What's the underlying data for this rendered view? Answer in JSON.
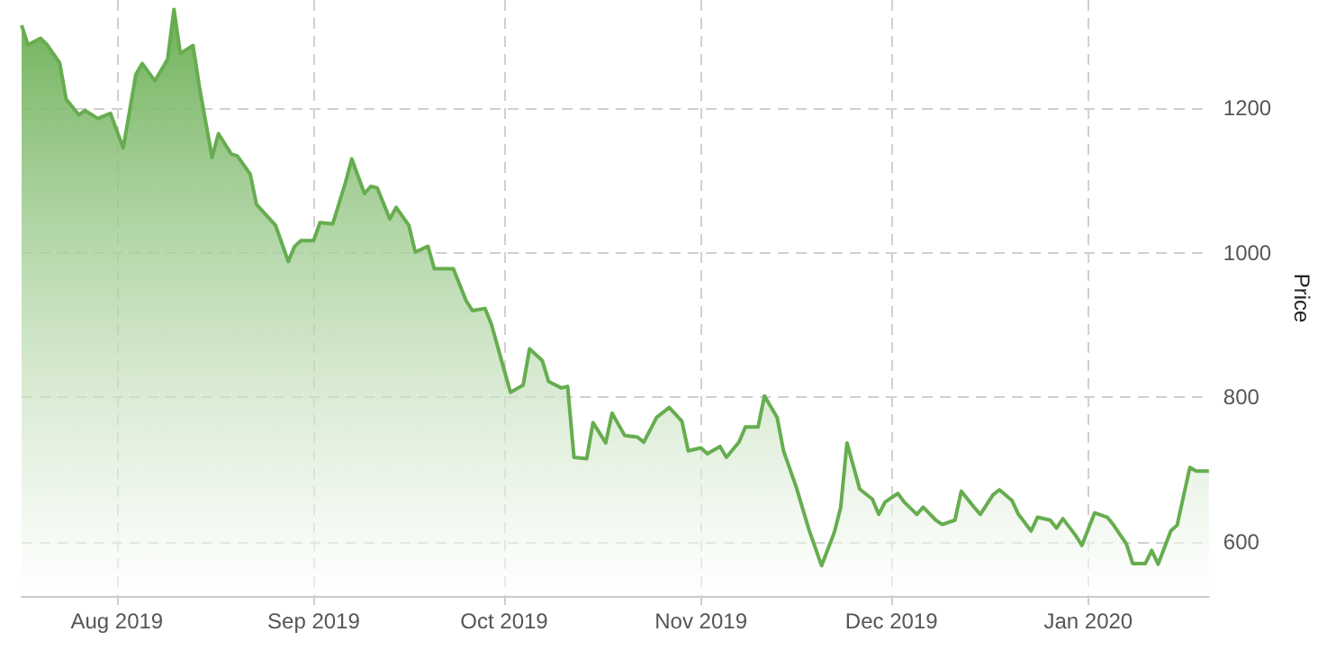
{
  "chart_data": {
    "type": "area",
    "ylabel": "Price",
    "grid": true,
    "marker": "none",
    "line_style": "solid",
    "xlim": [
      "2019-07-17",
      "2020-01-20"
    ],
    "xticks": [
      {
        "value": "2019-08-01",
        "label": "Aug 2019"
      },
      {
        "value": "2019-09-01",
        "label": "Sep 2019"
      },
      {
        "value": "2019-10-01",
        "label": "Oct 2019"
      },
      {
        "value": "2019-11-01",
        "label": "Nov 2019"
      },
      {
        "value": "2019-12-01",
        "label": "Dec 2019"
      },
      {
        "value": "2020-01-01",
        "label": "Jan 2020"
      }
    ],
    "ylim": [
      525,
      1350
    ],
    "yticks": [
      600,
      800,
      1000,
      1200
    ],
    "x": [
      "2019-07-17",
      "2019-07-18",
      "2019-07-20",
      "2019-07-21",
      "2019-07-23",
      "2019-07-24",
      "2019-07-26",
      "2019-07-27",
      "2019-07-29",
      "2019-07-31",
      "2019-08-02",
      "2019-08-04",
      "2019-08-05",
      "2019-08-07",
      "2019-08-09",
      "2019-08-10",
      "2019-08-11",
      "2019-08-13",
      "2019-08-14",
      "2019-08-16",
      "2019-08-17",
      "2019-08-19",
      "2019-08-20",
      "2019-08-22",
      "2019-08-23",
      "2019-08-26",
      "2019-08-28",
      "2019-08-29",
      "2019-08-30",
      "2019-09-01",
      "2019-09-02",
      "2019-09-04",
      "2019-09-06",
      "2019-09-07",
      "2019-09-09",
      "2019-09-10",
      "2019-09-11",
      "2019-09-13",
      "2019-09-14",
      "2019-09-16",
      "2019-09-17",
      "2019-09-19",
      "2019-09-20",
      "2019-09-23",
      "2019-09-25",
      "2019-09-26",
      "2019-09-28",
      "2019-09-29",
      "2019-10-01",
      "2019-10-02",
      "2019-10-04",
      "2019-10-05",
      "2019-10-07",
      "2019-10-08",
      "2019-10-10",
      "2019-10-11",
      "2019-10-12",
      "2019-10-14",
      "2019-10-15",
      "2019-10-17",
      "2019-10-18",
      "2019-10-20",
      "2019-10-22",
      "2019-10-23",
      "2019-10-25",
      "2019-10-27",
      "2019-10-29",
      "2019-10-30",
      "2019-11-01",
      "2019-11-02",
      "2019-11-04",
      "2019-11-05",
      "2019-11-07",
      "2019-11-08",
      "2019-11-10",
      "2019-11-11",
      "2019-11-13",
      "2019-11-14",
      "2019-11-16",
      "2019-11-18",
      "2019-11-20",
      "2019-11-22",
      "2019-11-23",
      "2019-11-24",
      "2019-11-26",
      "2019-11-28",
      "2019-11-29",
      "2019-11-30",
      "2019-12-02",
      "2019-12-03",
      "2019-12-05",
      "2019-12-06",
      "2019-12-08",
      "2019-12-09",
      "2019-12-11",
      "2019-12-12",
      "2019-12-14",
      "2019-12-15",
      "2019-12-17",
      "2019-12-18",
      "2019-12-20",
      "2019-12-21",
      "2019-12-23",
      "2019-12-24",
      "2019-12-26",
      "2019-12-27",
      "2019-12-28",
      "2019-12-30",
      "2019-12-31",
      "2020-01-02",
      "2020-01-04",
      "2020-01-05",
      "2020-01-07",
      "2020-01-08",
      "2020-01-10",
      "2020-01-11",
      "2020-01-12",
      "2020-01-14",
      "2020-01-15",
      "2020-01-17",
      "2020-01-18",
      "2020-01-20"
    ],
    "series": [
      {
        "color": "#66ad4f",
        "values": [
          1315,
          1288,
          1297,
          1288,
          1263,
          1213,
          1191,
          1197,
          1186,
          1193,
          1145,
          1247,
          1262,
          1238,
          1268,
          1337,
          1276,
          1287,
          1230,
          1132,
          1165,
          1137,
          1134,
          1109,
          1067,
          1038,
          988,
          1009,
          1017,
          1017,
          1042,
          1040,
          1097,
          1130,
          1082,
          1092,
          1090,
          1047,
          1063,
          1038,
          1001,
          1009,
          978,
          978,
          934,
          920,
          923,
          901,
          838,
          807,
          817,
          867,
          851,
          822,
          813,
          815,
          717,
          715,
          765,
          737,
          778,
          747,
          745,
          738,
          772,
          786,
          767,
          726,
          730,
          722,
          732,
          717,
          738,
          759,
          759,
          802,
          772,
          726,
          676,
          617,
          567,
          613,
          647,
          737,
          673,
          659,
          638,
          655,
          667,
          655,
          638,
          648,
          630,
          624,
          630,
          670,
          648,
          638,
          665,
          672,
          657,
          638,
          615,
          634,
          630,
          619,
          632,
          609,
          595,
          640,
          634,
          623,
          597,
          570,
          570,
          588,
          569,
          615,
          623,
          703,
          698,
          698
        ]
      }
    ]
  }
}
